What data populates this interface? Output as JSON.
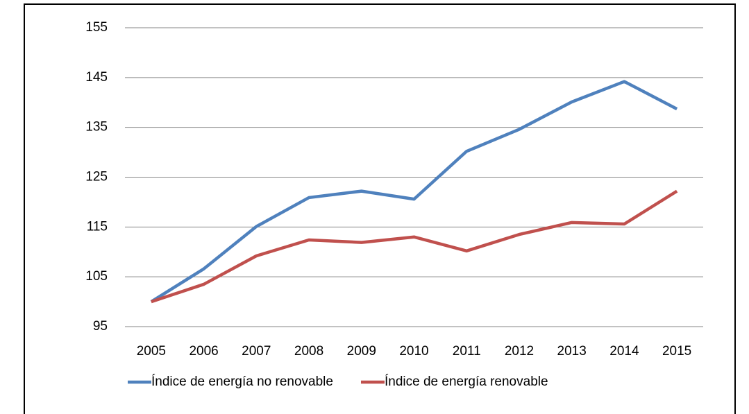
{
  "chart_data": {
    "type": "line",
    "categories": [
      "2005",
      "2006",
      "2007",
      "2008",
      "2009",
      "2010",
      "2011",
      "2012",
      "2013",
      "2014",
      "2015"
    ],
    "series": [
      {
        "name": "Índice de energía no renovable",
        "color": "#4f81bd",
        "values": [
          100,
          106.6,
          115.1,
          120.9,
          122.2,
          120.6,
          130.2,
          134.6,
          140.1,
          144.2,
          138.7
        ]
      },
      {
        "name": "Índice de energía renovable",
        "color": "#c0504d",
        "values": [
          100,
          103.5,
          109.2,
          112.4,
          111.9,
          113,
          110.2,
          113.5,
          115.9,
          115.6,
          122.2
        ]
      }
    ],
    "ylim": [
      95,
      155
    ],
    "yticks": [
      95,
      105,
      115,
      125,
      135,
      145,
      155
    ],
    "grid": true
  }
}
